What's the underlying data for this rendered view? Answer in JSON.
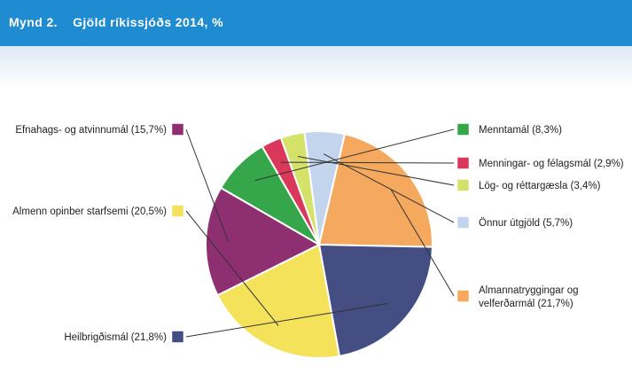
{
  "header": {
    "figure_label": "Mynd 2.",
    "title": "Gjöld ríkissjóðs 2014, %"
  },
  "colors": {
    "header_bg": "#1f8bd0",
    "band_top": "#dde9f6",
    "slice_border": "#ffffff",
    "leader_line": "#333333"
  },
  "chart_data": {
    "type": "pie",
    "title": "Gjöld ríkissjóðs 2014, %",
    "unit": "%",
    "slices": [
      {
        "label": "Menntamál (8,3%)",
        "value": 8.3,
        "color": "#35a74a"
      },
      {
        "label": "Menningar- og félagsmál (2,9%)",
        "value": 2.9,
        "color": "#d9385a"
      },
      {
        "label": "Lög- og réttargæsla (3,4%)",
        "value": 3.4,
        "color": "#d5e26a"
      },
      {
        "label": "Önnur útgjöld (5,7%)",
        "value": 5.7,
        "color": "#c3d5ec"
      },
      {
        "label_lines": [
          "Almannatryggingar og",
          "velferðarmál (21,7%)"
        ],
        "value": 21.7,
        "color": "#f5a95f"
      },
      {
        "label": "Heilbrigðismál (21,8%)",
        "value": 21.8,
        "color": "#444e83"
      },
      {
        "label": "Almenn opinber starfsemi (20,5%)",
        "value": 20.5,
        "color": "#f3e25a"
      },
      {
        "label": "Efnahags- og atvinnumál (15,7%)",
        "value": 15.7,
        "color": "#8e2f72"
      }
    ]
  }
}
